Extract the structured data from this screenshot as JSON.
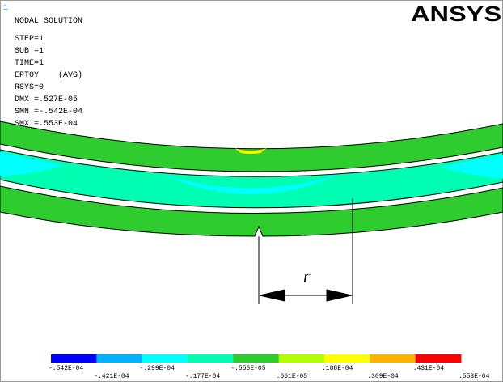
{
  "window_index": "1",
  "title": "NODAL SOLUTION",
  "info": [
    "STEP=1",
    "SUB =1",
    "TIME=1",
    "EPTOY    (AVG)",
    "RSYS=0",
    "DMX =.527E-05",
    "SMN =-.542E-04",
    "SMX =.553E-04"
  ],
  "logo": "ANSYS",
  "annotation": "r",
  "legend": {
    "colors": [
      "#0000ff",
      "#00b2ff",
      "#00ffff",
      "#00ffb2",
      "#2ecc2e",
      "#b2ff00",
      "#ffff00",
      "#ffb200",
      "#ff0000"
    ],
    "labels": [
      "-.542E-04",
      "-.421E-04",
      "-.299E-04",
      "-.177E-04",
      "-.556E-05",
      ".661E-05",
      ".188E-04",
      ".309E-04",
      ".431E-04",
      ".553E-04"
    ]
  }
}
